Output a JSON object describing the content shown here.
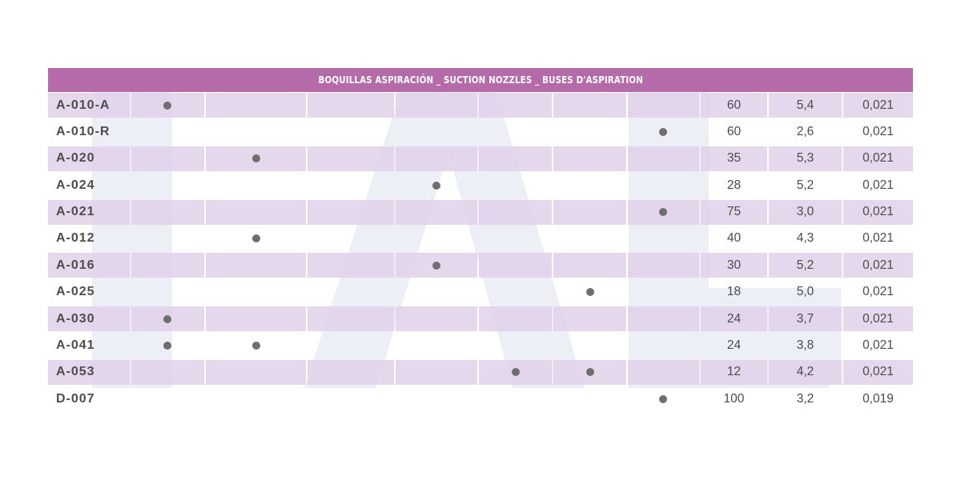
{
  "colors": {
    "header_bg": "#b56aa9",
    "row_shade": "#e1d0e8",
    "dot": "#6e6e6e"
  },
  "table": {
    "title": "BOQUILLAS ASPIRACIÓN _ SUCTION NOZZLES _ BUSES D'ASPIRATION",
    "rows": [
      {
        "code": "A-010-A",
        "marks": [
          1,
          0,
          0,
          0,
          0,
          0,
          0
        ],
        "v1": "60",
        "v2": "5,4",
        "v3": "0,021"
      },
      {
        "code": "A-010-R",
        "marks": [
          0,
          0,
          0,
          0,
          0,
          0,
          1
        ],
        "v1": "60",
        "v2": "2,6",
        "v3": "0,021"
      },
      {
        "code": "A-020",
        "marks": [
          0,
          1,
          0,
          0,
          0,
          0,
          0
        ],
        "v1": "35",
        "v2": "5,3",
        "v3": "0,021"
      },
      {
        "code": "A-024",
        "marks": [
          0,
          0,
          0,
          1,
          0,
          0,
          0
        ],
        "v1": "28",
        "v2": "5,2",
        "v3": "0,021"
      },
      {
        "code": "A-021",
        "marks": [
          0,
          0,
          0,
          0,
          0,
          0,
          1
        ],
        "v1": "75",
        "v2": "3,0",
        "v3": "0,021"
      },
      {
        "code": "A-012",
        "marks": [
          0,
          1,
          0,
          0,
          0,
          0,
          0
        ],
        "v1": "40",
        "v2": "4,3",
        "v3": "0,021"
      },
      {
        "code": "A-016",
        "marks": [
          0,
          0,
          0,
          1,
          0,
          0,
          0
        ],
        "v1": "30",
        "v2": "5,2",
        "v3": "0,021"
      },
      {
        "code": "A-025",
        "marks": [
          0,
          0,
          0,
          0,
          0,
          1,
          0
        ],
        "v1": "18",
        "v2": "5,0",
        "v3": "0,021"
      },
      {
        "code": "A-030",
        "marks": [
          1,
          0,
          0,
          0,
          0,
          0,
          0
        ],
        "v1": "24",
        "v2": "3,7",
        "v3": "0,021"
      },
      {
        "code": "A-041",
        "marks": [
          1,
          1,
          0,
          0,
          0,
          0,
          0
        ],
        "v1": "24",
        "v2": "3,8",
        "v3": "0,021"
      },
      {
        "code": "A-053",
        "marks": [
          0,
          0,
          0,
          0,
          1,
          1,
          0
        ],
        "v1": "12",
        "v2": "4,2",
        "v3": "0,021"
      },
      {
        "code": "D-007",
        "marks": [
          0,
          0,
          0,
          0,
          0,
          0,
          1
        ],
        "v1": "100",
        "v2": "3,2",
        "v3": "0,019"
      }
    ]
  }
}
